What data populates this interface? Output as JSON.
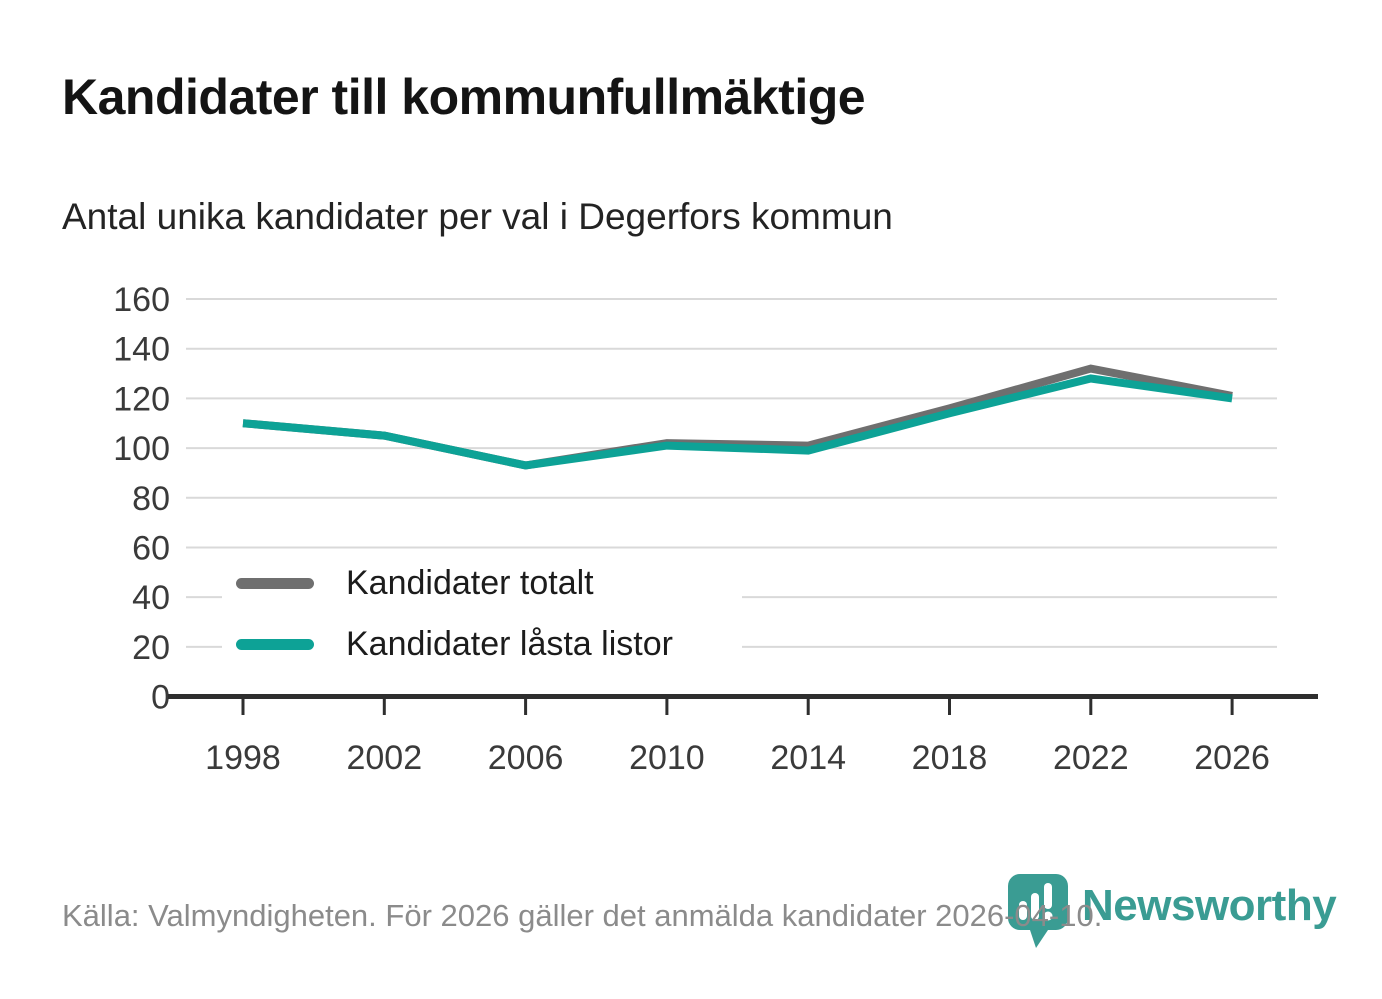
{
  "header": {
    "title": "Kandidater till kommunfullmäktige",
    "subtitle": "Antal unika kandidater per val i Degerfors kommun"
  },
  "chart_data": {
    "type": "line",
    "title": "Kandidater till kommunfullmäktige",
    "subtitle": "Antal unika kandidater per val i Degerfors kommun",
    "x": [
      1998,
      2002,
      2006,
      2010,
      2014,
      2018,
      2022,
      2026
    ],
    "series": [
      {
        "name": "Kandidater totalt",
        "color": "#6f6f6f",
        "values": [
          110,
          105,
          93,
          102,
          101,
          116,
          132,
          121
        ]
      },
      {
        "name": "Kandidater låsta listor",
        "color": "#0da296",
        "values": [
          110,
          105,
          93,
          101,
          99,
          114,
          128,
          120
        ]
      }
    ],
    "xlabel": "",
    "ylabel": "",
    "ylim": [
      0,
      160
    ],
    "yticks": [
      0,
      20,
      40,
      60,
      80,
      100,
      120,
      140,
      160
    ],
    "grid": true,
    "legend_position": "inside-lower-left",
    "colors": {
      "gridline": "#d9d9d9",
      "axis": "#2e2e2e",
      "tick_label": "#3a3a3a"
    }
  },
  "footer": {
    "source": "Källa: Valmyndigheten. För 2026 gäller det anmälda kandidater 2026-04-10.",
    "brand": "Newsworthy",
    "brand_color": "#3a9c93",
    "brand_icon": "bar-chart-pin-icon"
  }
}
